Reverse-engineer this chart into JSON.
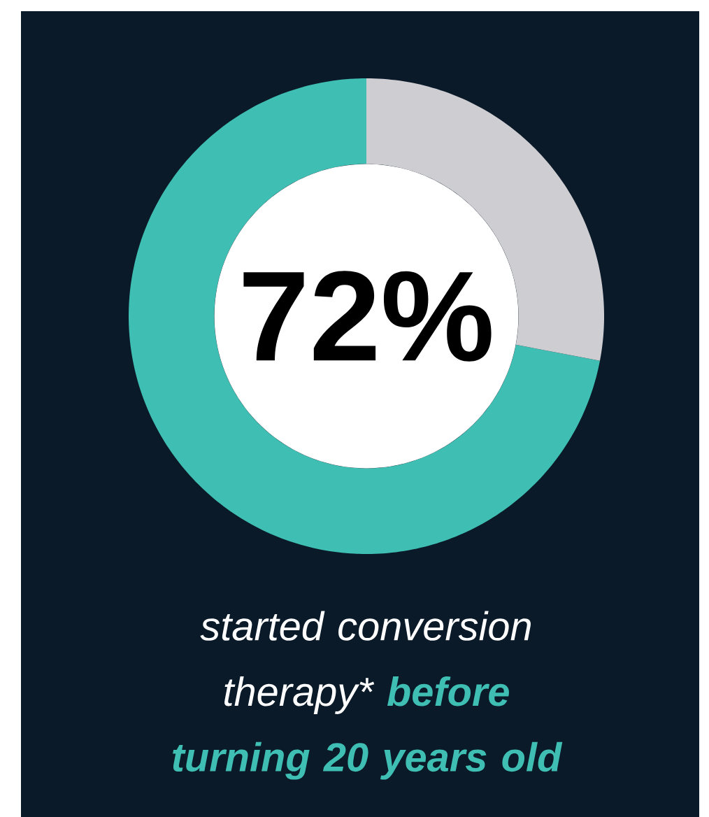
{
  "chart_data": {
    "type": "donut",
    "categories": [
      null,
      null
    ],
    "values": [
      72,
      28
    ],
    "colors": [
      "#3fbfb3",
      "#cdcdd2"
    ],
    "value_labels": [
      "72%",
      null
    ],
    "annotations": [
      "started conversion therapy*",
      "before turning 20 years old"
    ]
  }
}
